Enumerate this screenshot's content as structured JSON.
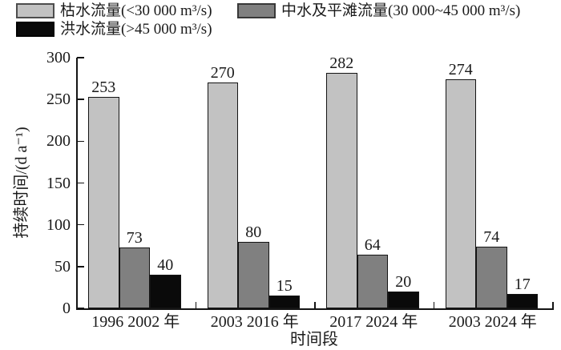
{
  "legend": {
    "items": [
      {
        "label": "枯水流量(<30 000 m³/s)",
        "color": "#c2c2c2"
      },
      {
        "label": "中水及平滩流量(30 000~45 000 m³/s)",
        "color": "#808080"
      },
      {
        "label": "洪水流量(>45 000 m³/s)",
        "color": "#0a0a0a"
      }
    ]
  },
  "chart_data": {
    "type": "bar",
    "title": "",
    "xlabel": "时间段",
    "ylabel": "持续时间/(d a⁻¹)",
    "ylim": [
      0,
      300
    ],
    "yticks": [
      0,
      50,
      100,
      150,
      200,
      250,
      300
    ],
    "grid": false,
    "legend_position": "top",
    "bar_value_labels": true,
    "categories": [
      "1996 2002 年",
      "2003 2016 年",
      "2017 2024 年",
      "2003 2024 年"
    ],
    "series": [
      {
        "name": "枯水流量(<30 000 m³/s)",
        "color": "#c2c2c2",
        "values": [
          253,
          270,
          282,
          274
        ]
      },
      {
        "name": "中水及平滩流量(30 000~45 000 m³/s)",
        "color": "#808080",
        "values": [
          73,
          80,
          64,
          74
        ]
      },
      {
        "name": "洪水流量(>45 000 m³/s)",
        "color": "#0a0a0a",
        "values": [
          40,
          15,
          20,
          17
        ]
      }
    ]
  }
}
